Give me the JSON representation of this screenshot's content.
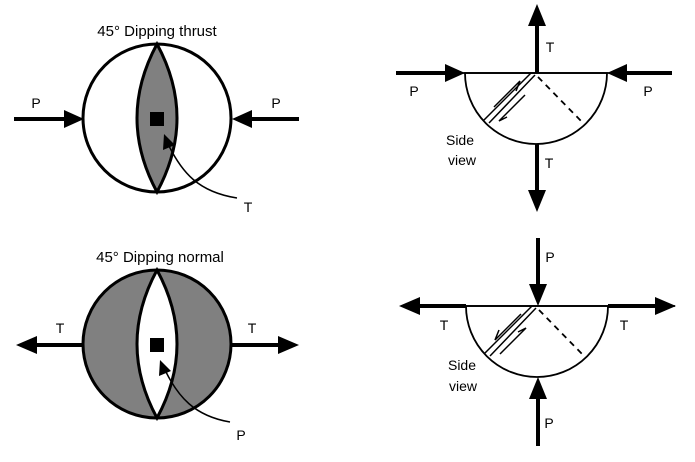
{
  "colors": {
    "fill": "#808080",
    "stroke": "#000000",
    "background": "#ffffff"
  },
  "thrust": {
    "title": "45° Dipping thrust",
    "p_left": "P",
    "p_right": "P",
    "t_pointer": "T",
    "side_t_top": "T",
    "side_t_bottom": "T",
    "side_p_left": "P",
    "side_p_right": "P",
    "side_view_line1": "Side",
    "side_view_line2": "view"
  },
  "normal": {
    "title": "45° Dipping normal",
    "t_left": "T",
    "t_right": "T",
    "p_pointer": "P",
    "side_p_top": "P",
    "side_p_bottom": "P",
    "side_t_left": "T",
    "side_t_right": "T",
    "side_view_line1": "Side",
    "side_view_line2": "view"
  }
}
